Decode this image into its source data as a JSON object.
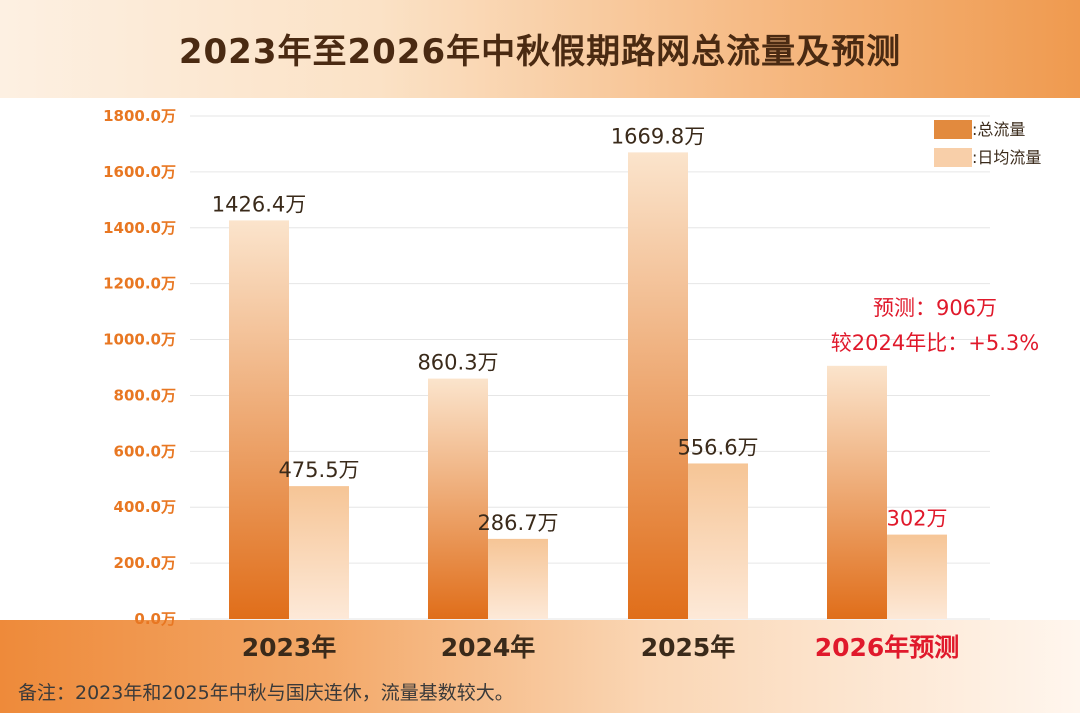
{
  "chart_data": {
    "type": "bar",
    "title": "2023年至2026年中秋假期路网总流量及预测",
    "categories": [
      "2023年",
      "2024年",
      "2025年",
      "2026年预测"
    ],
    "series": [
      {
        "name": ":总流量",
        "values": [
          1426.4,
          860.3,
          1669.8,
          906
        ],
        "labels": [
          "1426.4万",
          "860.3万",
          "1669.8万",
          ""
        ]
      },
      {
        "name": ":日均流量",
        "values": [
          475.5,
          286.7,
          556.6,
          302
        ],
        "labels": [
          "475.5万",
          "286.7万",
          "556.6万",
          "302万"
        ]
      }
    ],
    "ylim": [
      0,
      1800
    ],
    "yticks": [
      "0.0万",
      "200.0万",
      "400.0万",
      "600.0万",
      "800.0万",
      "1000.0万",
      "1200.0万",
      "1400.0万",
      "1600.0万",
      "1800.0万"
    ],
    "grid": true,
    "legend_position": "top-right",
    "annotation": [
      "预测：906万",
      "较2024年比：+5.3%"
    ],
    "highlight_category": "2026年预测",
    "colors": {
      "total_top": "#f8dcc0",
      "total_bottom": "#e06e1a",
      "daily_top": "#f4c9a0",
      "daily_bottom": "#fde8d6",
      "axis_label": "#e87722",
      "highlight": "#e0192b",
      "text": "#3a2a1a"
    }
  },
  "note": "备注：2023年和2025年中秋与国庆连休，流量基数较大。"
}
